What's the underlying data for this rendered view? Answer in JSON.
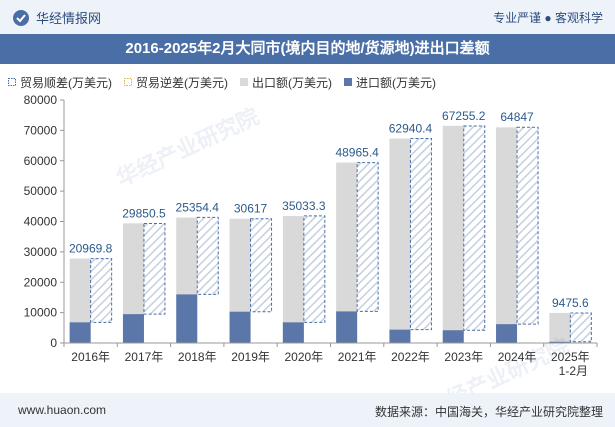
{
  "header": {
    "brand": "华经情报网",
    "tagline": "专业严谨 ● 客观科学"
  },
  "title": "2016-2025年2月大同市(境内目的地/货源地)进出口差额",
  "legend": {
    "items": [
      {
        "label": "贸易顺差(万美元)",
        "color": "#4a6fa6",
        "pattern": "hatch"
      },
      {
        "label": "贸易逆差(万美元)",
        "color": "#d9b84a",
        "pattern": "hatch"
      },
      {
        "label": "出口额(万美元)",
        "color": "#d9d9d9",
        "pattern": "solid"
      },
      {
        "label": "进口额(万美元)",
        "color": "#5b76a8",
        "pattern": "solid"
      }
    ]
  },
  "chart_data": {
    "type": "bar",
    "categories": [
      "2016年",
      "2017年",
      "2018年",
      "2019年",
      "2020年",
      "2021年",
      "2022年",
      "2023年",
      "2024年",
      "2025年\n1-2月"
    ],
    "series": [
      {
        "name": "贸易顺差(万美元)",
        "values": [
          20969.8,
          29850.5,
          25354.4,
          30617,
          35033.3,
          48965.4,
          62940.4,
          67255.2,
          64847,
          9475.6
        ]
      },
      {
        "name": "出口额(万美元)",
        "values": [
          27800,
          39400,
          41300,
          40900,
          41800,
          59400,
          67300,
          71500,
          71000,
          9900
        ]
      },
      {
        "name": "进口额(万美元)",
        "values": [
          6800,
          9500,
          16000,
          10300,
          6800,
          10400,
          4400,
          4200,
          6200,
          400
        ]
      }
    ],
    "data_labels": [
      "20969.8",
      "29850.5",
      "25354.4",
      "30617",
      "35033.3",
      "48965.4",
      "62940.4",
      "67255.2",
      "64847",
      "9475.6"
    ],
    "ylim": [
      0,
      80000
    ],
    "yticks": [
      0,
      10000,
      20000,
      30000,
      40000,
      50000,
      60000,
      70000,
      80000
    ],
    "grid": false,
    "legend_position": "top"
  },
  "footer": {
    "url": "www.huaon.com",
    "source": "数据来源：中国海关，华经产业研究院整理"
  }
}
